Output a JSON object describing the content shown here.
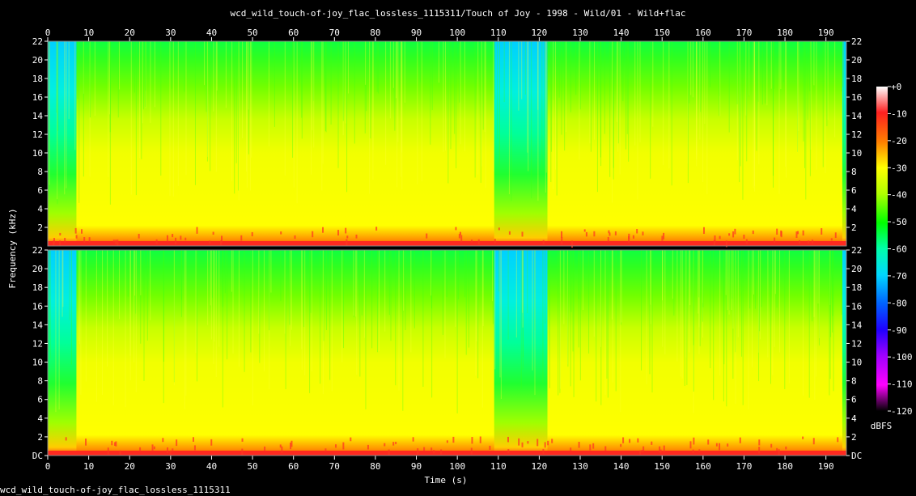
{
  "chart_data": {
    "type": "heatmap",
    "title": "wcd_wild_touch-of-joy_flac_lossless_1115311/Touch of Joy - 1998 - Wild/01 - Wild+flac",
    "xlabel": "Time (s)",
    "ylabel": "Frequency (kHz)",
    "xlim": [
      0,
      195
    ],
    "ylim": [
      0,
      22
    ],
    "x_ticks": [
      "0",
      "10",
      "20",
      "30",
      "40",
      "50",
      "60",
      "70",
      "80",
      "90",
      "100",
      "110",
      "120",
      "130",
      "140",
      "150",
      "160",
      "170",
      "180",
      "190"
    ],
    "y_ticks": [
      "DC",
      "2",
      "4",
      "6",
      "8",
      "10",
      "12",
      "14",
      "16",
      "18",
      "20",
      "22"
    ],
    "channels": 2,
    "colorbar": {
      "label": "dBFS",
      "range": [
        -120,
        0
      ],
      "ticks": [
        "+0",
        "-10",
        "-20",
        "-30",
        "-40",
        "-50",
        "-60",
        "-70",
        "-80",
        "-90",
        "-100",
        "-110",
        "-120"
      ],
      "colors": [
        "#ffffff",
        "#ff2020",
        "#ff7f00",
        "#ffff00",
        "#b0ff00",
        "#00ff00",
        "#00ffaa",
        "#00d8ff",
        "#0060ff",
        "#2000ff",
        "#a000ff",
        "#ff00ff",
        "#300030",
        "#000000"
      ]
    },
    "quiet_segments_s": [
      [
        0,
        7
      ],
      [
        109,
        122
      ],
      [
        194,
        195
      ]
    ]
  },
  "footer": "wcd_wild_touch-of-joy_flac_lossless_1115311"
}
